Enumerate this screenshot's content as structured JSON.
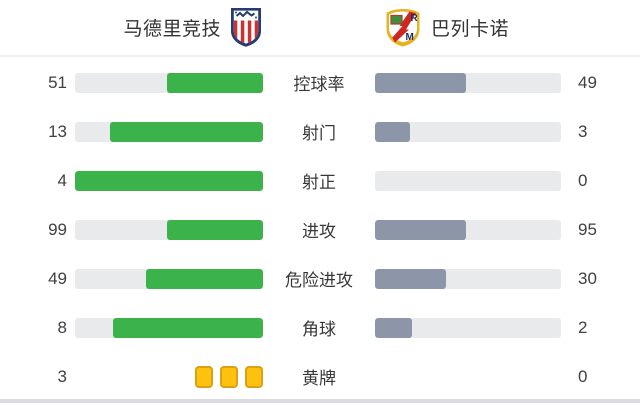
{
  "header": {
    "home_team": {
      "name": "马德里竞技",
      "crest_icon": "atletico-madrid-crest"
    },
    "away_team": {
      "name": "巴列卡诺",
      "crest_icon": "rayo-vallecano-crest"
    }
  },
  "chart_data": {
    "type": "bar",
    "orientation": "horizontal-paired-comparison",
    "categories": [
      "控球率",
      "射门",
      "射正",
      "进攻",
      "危险进攻",
      "角球",
      "黄牌"
    ],
    "series": [
      {
        "name": "马德里竞技",
        "color": "#3cb34a",
        "values": [
          51,
          13,
          4,
          99,
          49,
          8,
          3
        ]
      },
      {
        "name": "巴列卡诺",
        "color": "#8c96a8",
        "values": [
          49,
          3,
          0,
          95,
          30,
          2,
          0
        ]
      }
    ],
    "bar_rule": "fill width = value / (home+away); home bar anchored right, away bar anchored left",
    "special_rows": {
      "黄牌": "yellow-card-icons"
    },
    "legend_position": "top-as-team-header",
    "grid": false
  },
  "colors": {
    "home_fill": "#3cb34a",
    "away_fill": "#8c96a8",
    "track": "#e9eaec",
    "yellow_card": "#fdc20e",
    "yellow_card_border": "#d9a113",
    "text": "#3c3c3c",
    "divider": "#eeeef1",
    "bottom_edge": "#d9dbde"
  }
}
